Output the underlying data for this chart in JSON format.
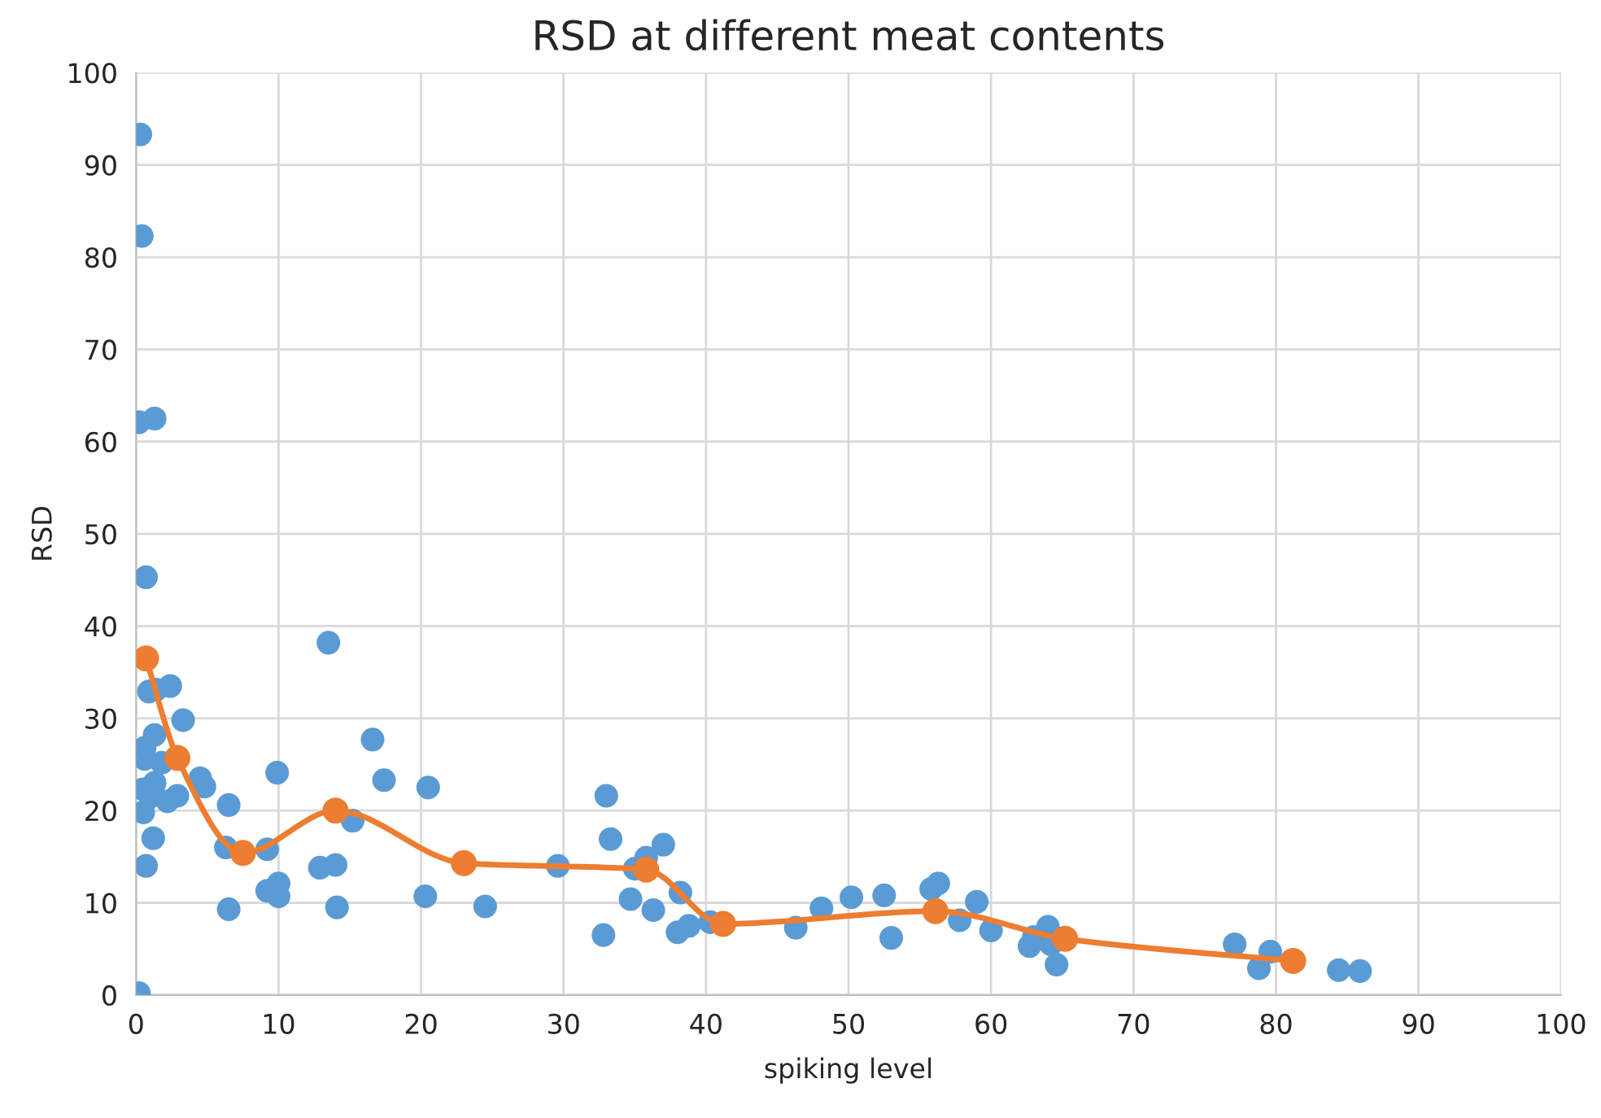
{
  "chart_data": {
    "type": "scatter",
    "title": "RSD at different meat contents",
    "xlabel": "spiking level",
    "ylabel": "RSD",
    "xlim": [
      0,
      100
    ],
    "ylim": [
      0,
      100
    ],
    "xticks": [
      0,
      10,
      20,
      30,
      40,
      50,
      60,
      70,
      80,
      90,
      100
    ],
    "yticks": [
      0,
      10,
      20,
      30,
      40,
      50,
      60,
      70,
      80,
      90,
      100
    ],
    "grid": true,
    "legend": false,
    "marker": "circle",
    "series": [
      {
        "color": "#5b9bd5",
        "x": [
          0.3,
          0.4,
          0.2,
          1.3,
          0.7,
          0.9,
          1.4,
          2.4,
          3.3,
          0.6,
          0.6,
          1.3,
          1.8,
          0.5,
          1.3,
          1.0,
          2.2,
          2.9,
          0.5,
          1.2,
          0.7,
          0.2,
          4.5,
          4.8,
          6.5,
          6.3,
          6.5,
          9.2,
          9.2,
          9.9,
          10.0,
          10.0,
          12.9,
          13.5,
          14.0,
          14.1,
          15.2,
          16.6,
          17.4,
          20.3,
          20.5,
          24.5,
          29.6,
          32.8,
          33.0,
          33.3,
          34.7,
          35.0,
          35.8,
          36.3,
          37.0,
          38.0,
          38.2,
          38.8,
          40.3,
          46.3,
          48.1,
          50.2,
          52.5,
          53.0,
          55.8,
          56.3,
          57.8,
          59.0,
          60.0,
          62.7,
          63.0,
          64.0,
          64.2,
          64.6,
          77.1,
          78.8,
          79.6,
          84.4,
          85.9
        ],
        "values": [
          93.3,
          82.3,
          62.1,
          62.5,
          45.3,
          32.9,
          33.1,
          33.5,
          29.8,
          26.8,
          25.6,
          28.2,
          25.2,
          22.3,
          23.0,
          21.5,
          21.0,
          21.6,
          19.8,
          17.0,
          14.0,
          0.2,
          23.5,
          22.6,
          20.6,
          16.0,
          9.3,
          11.3,
          15.8,
          24.1,
          12.1,
          10.7,
          13.8,
          38.2,
          14.1,
          9.5,
          18.9,
          27.7,
          23.3,
          10.7,
          22.5,
          9.6,
          14.0,
          6.5,
          21.6,
          16.9,
          10.4,
          13.7,
          14.9,
          9.2,
          16.3,
          6.8,
          11.1,
          7.5,
          7.9,
          7.3,
          9.4,
          10.6,
          10.8,
          6.2,
          11.5,
          12.1,
          8.1,
          10.1,
          7.0,
          5.3,
          6.3,
          7.4,
          5.5,
          3.3,
          5.5,
          2.9,
          4.7,
          2.7,
          2.6
        ]
      },
      {
        "type": "line",
        "color": "#ed7d31",
        "x": [
          0.7,
          2.9,
          7.5,
          14.0,
          23.0,
          35.8,
          41.2,
          56.1,
          65.2,
          81.2
        ],
        "values": [
          36.5,
          25.7,
          15.4,
          20.0,
          14.3,
          13.6,
          7.7,
          9.1,
          6.1,
          3.7
        ]
      }
    ]
  }
}
